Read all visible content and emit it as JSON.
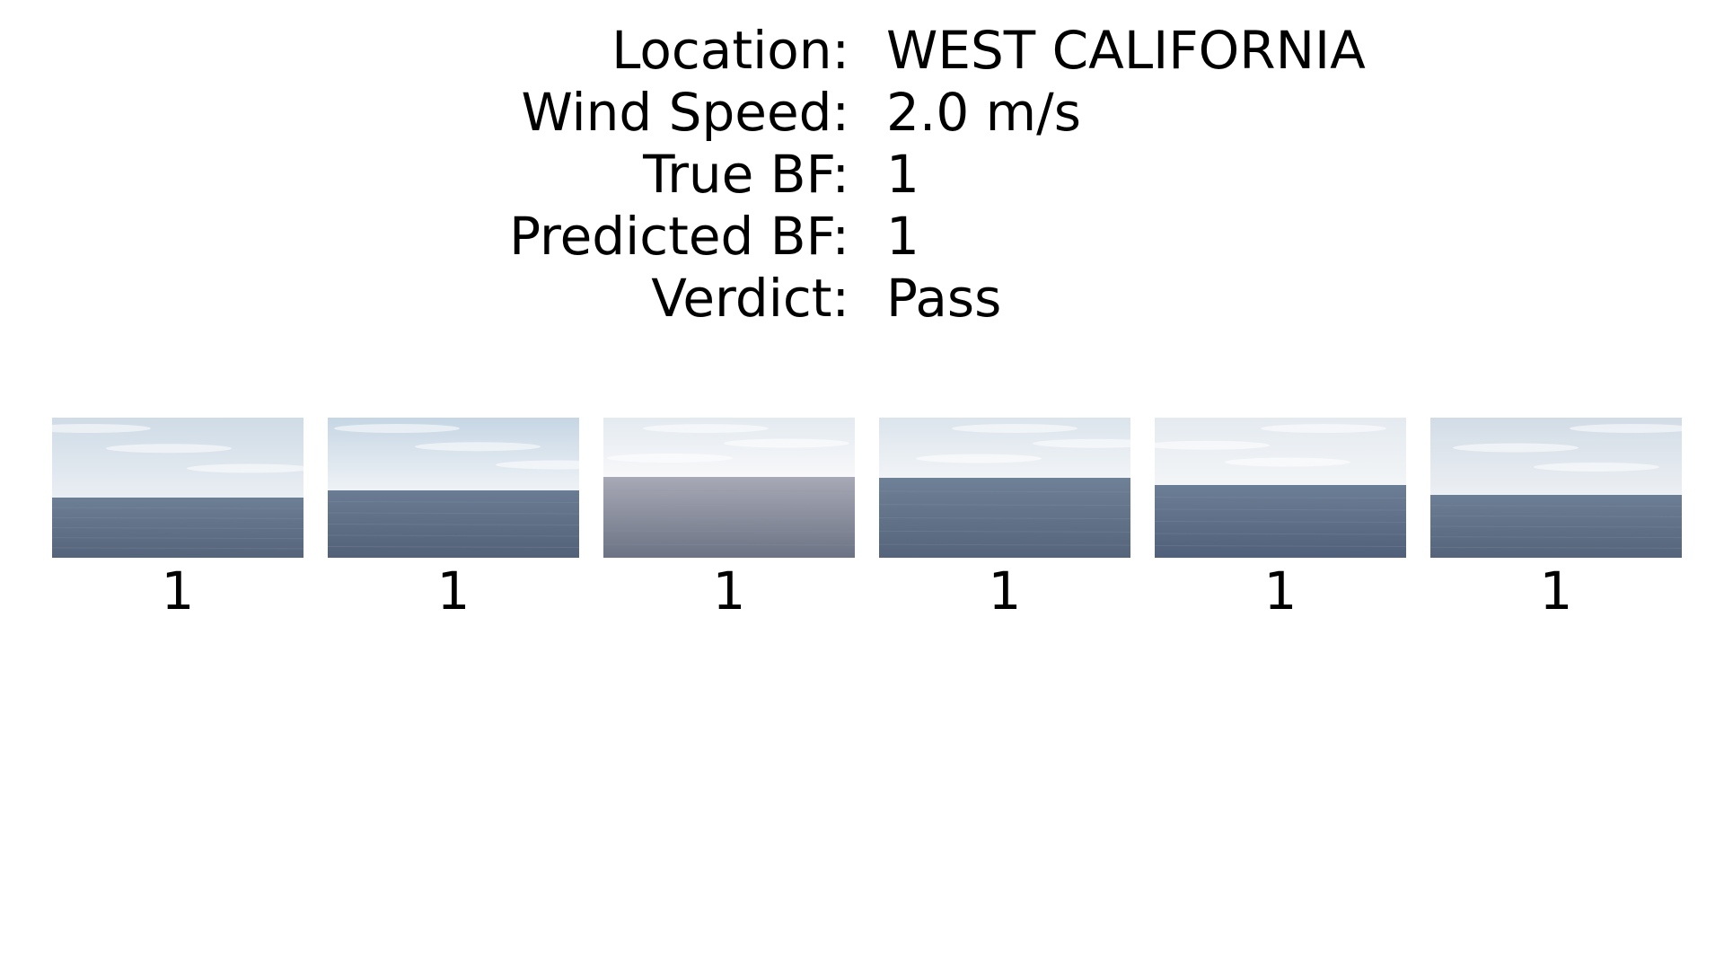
{
  "info": [
    {
      "label": "Location:",
      "value": "WEST CALIFORNIA"
    },
    {
      "label": "Wind Speed:",
      "value": "2.0 m/s"
    },
    {
      "label": "True BF:",
      "value": "1"
    },
    {
      "label": "Predicted BF:",
      "value": "1"
    },
    {
      "label": "Verdict:",
      "value": "Pass"
    }
  ],
  "thumbnails": [
    {
      "label": "1",
      "sky_top": "#cfdbe6",
      "sky_bottom": "#e9eef3",
      "sea_top": "#6d7f95",
      "sea_bottom": "#55647a",
      "horizon": 0.57
    },
    {
      "label": "1",
      "sky_top": "#c6d6e4",
      "sky_bottom": "#eef2f6",
      "sea_top": "#6a7c93",
      "sea_bottom": "#526178",
      "horizon": 0.52
    },
    {
      "label": "1",
      "sky_top": "#e3eaf0",
      "sky_bottom": "#f8f8fa",
      "sea_top": "#a8a9b6",
      "sea_bottom": "#6b7384",
      "horizon": 0.42
    },
    {
      "label": "1",
      "sky_top": "#dbe4ec",
      "sky_bottom": "#f1f4f7",
      "sea_top": "#6f8197",
      "sea_bottom": "#55647a",
      "horizon": 0.43
    },
    {
      "label": "1",
      "sky_top": "#e4eaf0",
      "sky_bottom": "#f3f5f7",
      "sea_top": "#6c7e95",
      "sea_bottom": "#51607a",
      "horizon": 0.48
    },
    {
      "label": "1",
      "sky_top": "#d2dce6",
      "sky_bottom": "#eceff3",
      "sea_top": "#6c7e95",
      "sea_bottom": "#55647a",
      "horizon": 0.55
    }
  ]
}
